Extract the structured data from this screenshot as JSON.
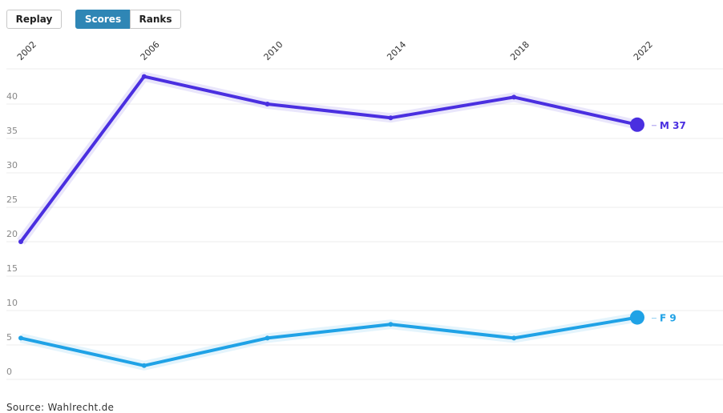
{
  "controls": {
    "replay_label": "Replay",
    "scores_label": "Scores",
    "ranks_label": "Ranks",
    "active_tab": "Scores"
  },
  "source_text": "Source: Wahlrecht.de",
  "colors": {
    "M": "#4a2fe0",
    "F": "#1fa2e6",
    "grid": "#ececec",
    "axis_text": "#888888"
  },
  "chart_data": {
    "type": "line",
    "x": [
      2002,
      2006,
      2010,
      2014,
      2018,
      2022
    ],
    "x_tick_labels": [
      "2002",
      "2006",
      "2010",
      "2014",
      "2018",
      "2022"
    ],
    "y_ticks": [
      0,
      5,
      10,
      15,
      20,
      25,
      30,
      35,
      40
    ],
    "ylim": [
      0,
      45
    ],
    "grid": true,
    "series": [
      {
        "name": "M",
        "values": [
          20,
          44,
          40,
          38,
          41,
          37
        ],
        "end_label": "M 37"
      },
      {
        "name": "F",
        "values": [
          6,
          2,
          6,
          8,
          6,
          9
        ],
        "end_label": "F 9"
      }
    ]
  }
}
